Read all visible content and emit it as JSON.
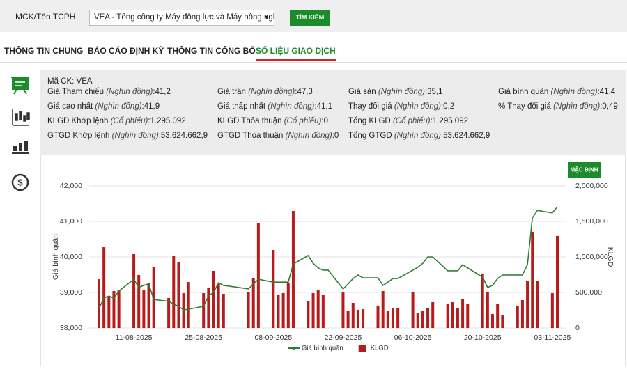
{
  "header": {
    "label": "MCK/Tên TCPH",
    "select": "VEA - Tổng công ty Máy động lực và Máy nông nghiệ…",
    "button": "TÌM KIẾM"
  },
  "tabs": [
    "THÔNG TIN CHUNG",
    "BÁO CÁO ĐỊNH KỲ",
    "THÔNG TIN CÔNG BỐ",
    "SỐ LIỆU GIAO DỊCH"
  ],
  "active_tab": 3,
  "info": {
    "code": "Mã CK: VEA",
    "rows": [
      [
        {
          "label": "Giá Tham chiếu",
          "unit": "(Nghìn đồng)",
          "value": ":41,2"
        },
        {
          "label": "Giá trần",
          "unit": "(Nghìn đồng)",
          "value": ":47,3"
        },
        {
          "label": "Giá sàn",
          "unit": "(Nghìn đồng)",
          "value": ":35,1"
        },
        {
          "label": "Giá bình quân",
          "unit": "(Nghìn đồng)",
          "value": ":41,4"
        }
      ],
      [
        {
          "label": "Giá cao nhất",
          "unit": "(Nghìn đồng)",
          "value": ":41,9"
        },
        {
          "label": "Giá thấp nhất",
          "unit": "(Nghìn đồng)",
          "value": ":41,1"
        },
        {
          "label": "Thay đổi giá",
          "unit": "(Nghìn đồng)",
          "value": ":0,2"
        },
        {
          "label": "% Thay đổi giá",
          "unit": "(Nghìn đồng)",
          "value": ":0,49"
        }
      ],
      [
        {
          "label": "KLGD Khớp lệnh",
          "unit": "(Cổ phiếu)",
          "value": ":1.295.092"
        },
        {
          "label": "KLGD Thỏa thuận",
          "unit": "(Cổ phiếu)",
          "value": ":0"
        },
        {
          "label": "Tổng KLGD",
          "unit": "(Cổ phiếu)",
          "value": ":1.295.092"
        }
      ],
      [
        {
          "label": "GTGD Khớp lệnh",
          "unit": "(Nghìn đồng)",
          "value": ":53.624.662,9"
        },
        {
          "label": "GTGD Thỏa thuận",
          "unit": "(Nghìn đồng)",
          "value": ":0"
        },
        {
          "label": "Tổng GTGD",
          "unit": "(Nghìn đồng)",
          "value": ":53.624.662,9"
        }
      ]
    ]
  },
  "chart_data": {
    "type": "combo",
    "button": "MẶC ĐỊNH",
    "ylabel": "Giá bình quân",
    "y2label": "KLGD",
    "grid": true,
    "x": [
      "04-08-2025",
      "05-08-2025",
      "06-08-2025",
      "07-08-2025",
      "08-08-2025",
      "11-08-2025",
      "12-08-2025",
      "13-08-2025",
      "14-08-2025",
      "15-08-2025",
      "18-08-2025",
      "19-08-2025",
      "20-08-2025",
      "21-08-2025",
      "22-08-2025",
      "25-08-2025",
      "26-08-2025",
      "27-08-2025",
      "28-08-2025",
      "29-08-2025",
      "03-09-2025",
      "04-09-2025",
      "05-09-2025",
      "08-09-2025",
      "09-09-2025",
      "10-09-2025",
      "11-09-2025",
      "12-09-2025",
      "15-09-2025",
      "16-09-2025",
      "17-09-2025",
      "18-09-2025",
      "19-09-2025",
      "22-09-2025",
      "23-09-2025",
      "24-09-2025",
      "25-09-2025",
      "26-09-2025",
      "29-09-2025",
      "30-09-2025",
      "01-10-2025",
      "02-10-2025",
      "03-10-2025",
      "06-10-2025",
      "07-10-2025",
      "08-10-2025",
      "09-10-2025",
      "10-10-2025",
      "13-10-2025",
      "14-10-2025",
      "15-10-2025",
      "16-10-2025",
      "17-10-2025",
      "20-10-2025",
      "21-10-2025",
      "22-10-2025",
      "23-10-2025",
      "24-10-2025",
      "27-10-2025",
      "28-10-2025",
      "29-10-2025",
      "30-10-2025",
      "31-10-2025",
      "03-11-2025",
      "04-11-2025"
    ],
    "xticks": [
      "11-08-2025",
      "25-08-2025",
      "08-09-2025",
      "22-09-2025",
      "06-10-2025",
      "20-10-2025",
      "03-11-2025"
    ],
    "series": [
      {
        "name": "Giá bình quân",
        "type": "line",
        "color": "#2e7d32",
        "axis": "y",
        "values": [
          38550,
          38840,
          38900,
          38840,
          39040,
          39370,
          39140,
          39200,
          39240,
          38800,
          38750,
          38670,
          38610,
          38510,
          38530,
          38610,
          38900,
          39000,
          39270,
          39200,
          39100,
          39240,
          39370,
          39290,
          39290,
          39290,
          39290,
          39800,
          40040,
          39820,
          39690,
          39630,
          39630,
          39100,
          39240,
          39390,
          39490,
          39410,
          39410,
          39200,
          39290,
          39390,
          39390,
          39630,
          39710,
          39820,
          40000,
          40000,
          39610,
          39610,
          39610,
          39780,
          39690,
          39430,
          39140,
          39200,
          39390,
          39490,
          39490,
          39490,
          39780,
          41100,
          41310,
          41240,
          41410
        ]
      },
      {
        "name": "KLGD",
        "type": "bar",
        "color": "#b71c1c",
        "axis": "y2",
        "values": [
          686000,
          1137000,
          451000,
          520000,
          539000,
          1039000,
          745000,
          529000,
          627000,
          853000,
          422000,
          1020000,
          931000,
          490000,
          647000,
          490000,
          569000,
          804000,
          618000,
          480000,
          510000,
          696000,
          1471000,
          1098000,
          471000,
          490000,
          637000,
          1647000,
          382000,
          490000,
          539000,
          471000,
          null,
          500000,
          245000,
          353000,
          255000,
          265000,
          304000,
          520000,
          245000,
          275000,
          275000,
          500000,
          206000,
          235000,
          275000,
          363000,
          343000,
          363000,
          275000,
          402000,
          343000,
          755000,
          500000,
          196000,
          343000,
          176000,
          314000,
          392000,
          667000,
          1353000,
          657000,
          490000,
          1295092
        ]
      }
    ],
    "ylim": [
      38000,
      42000
    ],
    "yticks": [
      {
        "value": 38000,
        "label": "38,000"
      },
      {
        "value": 39000,
        "label": "39,000"
      },
      {
        "value": 40000,
        "label": "40,000"
      },
      {
        "value": 41000,
        "label": "41,000"
      },
      {
        "value": 42000,
        "label": "42,000"
      }
    ],
    "y2lim": [
      0,
      2000000
    ],
    "y2ticks": [
      0,
      {
        "value": 500000,
        "label": "500,000"
      },
      {
        "value": 1000000,
        "label": "1,000,000"
      },
      {
        "value": 1500000,
        "label": "1,500,000"
      },
      {
        "value": 2000000,
        "label": "2,000,000"
      }
    ]
  }
}
